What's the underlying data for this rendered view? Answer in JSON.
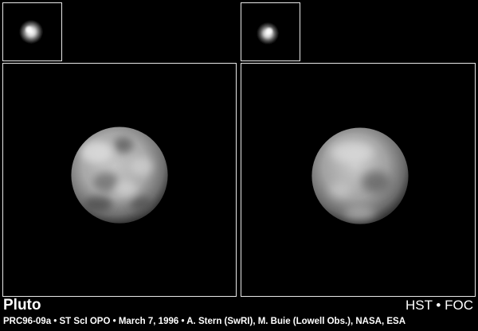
{
  "caption": {
    "title": "Pluto",
    "instrument": "HST • FOC",
    "credit": "PRC96-09a • ST ScI OPO • March 7, 1996 • A. Stern (SwRI), M. Buie (Lowell Obs.), NASA, ESA"
  },
  "colors": {
    "background": "#000000",
    "frame_border": "#e8e8e8",
    "text": "#ffffff"
  }
}
